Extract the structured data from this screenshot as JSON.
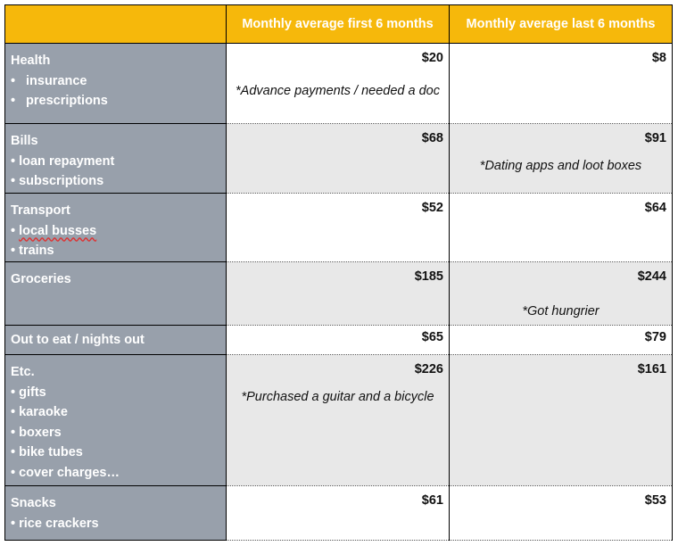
{
  "headers": {
    "first": "Monthly average first 6 months",
    "last": "Monthly average last 6 months"
  },
  "rows": [
    {
      "category": "Health",
      "items": [
        "insurance",
        "prescriptions"
      ],
      "first": "$20",
      "last": "$8",
      "note_first": "*Advance payments / needed a doc",
      "note_last": ""
    },
    {
      "category": "Bills",
      "items": [
        "loan repayment",
        "subscriptions"
      ],
      "first": "$68",
      "last": "$91",
      "note_first": "",
      "note_last": "*Dating apps and loot boxes"
    },
    {
      "category": "Transport",
      "items": [
        "local busses",
        "trains"
      ],
      "first": "$52",
      "last": "$64",
      "note_first": "",
      "note_last": ""
    },
    {
      "category": "Groceries",
      "items": [],
      "first": "$185",
      "last": "$244",
      "note_first": "",
      "note_last": "*Got hungrier"
    },
    {
      "category": "Out to eat / nights out",
      "items": [],
      "first": "$65",
      "last": "$79",
      "note_first": "",
      "note_last": ""
    },
    {
      "category": "Etc.",
      "items": [
        "gifts",
        "karaoke",
        "boxers",
        "bike tubes",
        "cover charges…"
      ],
      "first": "$226",
      "last": "$161",
      "note_first": "*Purchased a guitar and a bicycle",
      "note_last": ""
    },
    {
      "category": "Snacks",
      "items": [
        "rice crackers"
      ],
      "first": "$61",
      "last": "$53",
      "note_first": "",
      "note_last": ""
    }
  ],
  "colors": {
    "header": "#f6b80b",
    "category_bg": "#98a0ab",
    "shaded_row": "#e8e8e8"
  }
}
